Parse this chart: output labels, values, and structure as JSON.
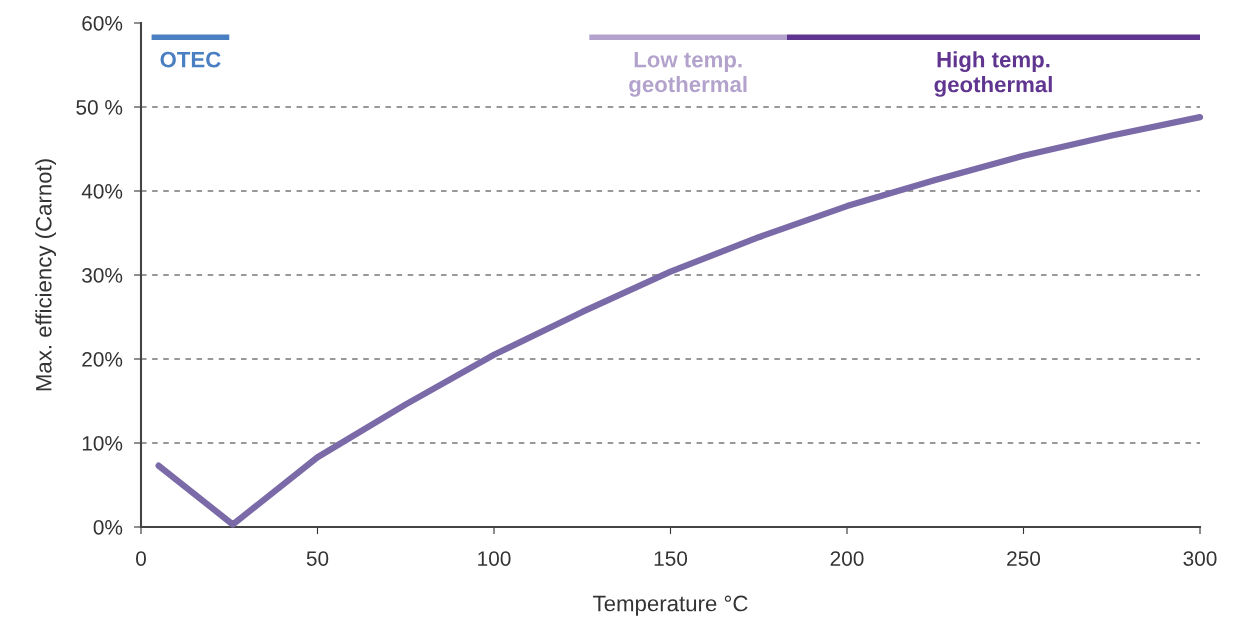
{
  "chart_data": {
    "type": "line",
    "xlabel": "Temperature °C",
    "ylabel": "Max. efficiency (Carnot)",
    "x": [
      5,
      26,
      50,
      75,
      100,
      125,
      150,
      175,
      200,
      225,
      250,
      275,
      300
    ],
    "series": [
      {
        "values": [
          7.3,
          0.3,
          8.3,
          14.6,
          20.5,
          25.6,
          30.4,
          34.5,
          38.2,
          41.3,
          44.2,
          46.6,
          48.8
        ],
        "color": "#7b6aa8"
      },
      {
        "name": "OTEC",
        "x": [
          3,
          25
        ],
        "values": [
          58.3,
          58.3
        ],
        "color": "#4a7fc1"
      },
      {
        "name": "Low temp.\ngeothermal",
        "x": [
          127,
          183
        ],
        "values": [
          58.3,
          58.3
        ],
        "color": "#b3a3cc"
      },
      {
        "name": "High temp.\ngeothermal",
        "x": [
          183,
          300
        ],
        "values": [
          58.3,
          58.3
        ],
        "color": "#5f3590"
      }
    ],
    "xlim": [
      0,
      300
    ],
    "xticks": [
      0,
      50,
      100,
      150,
      200,
      250,
      300
    ],
    "ylim": [
      0,
      60
    ],
    "yticks": [
      {
        "value": 0,
        "label": "0%"
      },
      {
        "value": 10,
        "label": "10%"
      },
      {
        "value": 20,
        "label": "20%"
      },
      {
        "value": 30,
        "label": "30%"
      },
      {
        "value": 40,
        "label": "40%"
      },
      {
        "value": 50,
        "label": "50 %"
      },
      {
        "value": 60,
        "label": "60%"
      }
    ],
    "grid": "y",
    "line_style": "solid",
    "marker": "none"
  }
}
